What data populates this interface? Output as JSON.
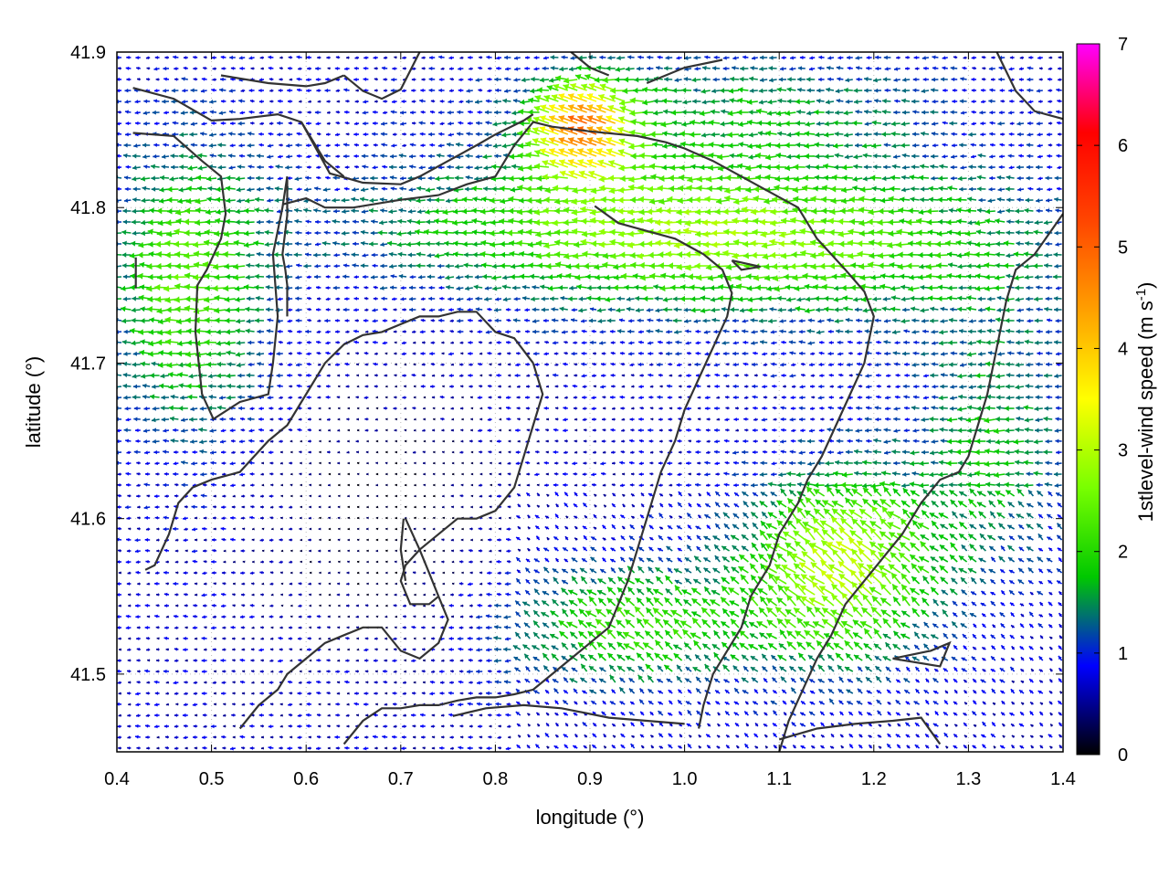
{
  "chart_data": {
    "type": "quiver",
    "xlabel": "longitude (°)",
    "ylabel": "latitude (°)",
    "xlim": [
      0.4,
      1.4
    ],
    "ylim": [
      41.45,
      41.9
    ],
    "xticks": [
      "0.4",
      "0.5",
      "0.6",
      "0.7",
      "0.8",
      "0.9",
      "1.0",
      "1.1",
      "1.2",
      "1.3",
      "1.4"
    ],
    "yticks": [
      "41.5",
      "41.6",
      "41.7",
      "41.8",
      "41.9"
    ],
    "ytick_values": [
      41.5,
      41.6,
      41.7,
      41.8,
      41.9
    ],
    "colorbar": {
      "label_main": "1stlevel-wind speed (m s",
      "label_sup": "-1",
      "label_close": ")",
      "range": [
        0,
        7
      ],
      "ticks": [
        "0",
        "1",
        "2",
        "3",
        "4",
        "5",
        "6",
        "7"
      ],
      "colors": [
        "#000000",
        "#0000ff",
        "#00c800",
        "#78ff00",
        "#ffff00",
        "#ffa000",
        "#ff4600",
        "#ff0000",
        "#ff00ff"
      ]
    },
    "prevailing_wind": "easterly (blowing toward west)",
    "grid": "dotted",
    "contour_lines": [
      [
        [
          0.417,
          41.877
        ],
        [
          0.46,
          41.87
        ],
        [
          0.5,
          41.856
        ],
        [
          0.53,
          41.857
        ],
        [
          0.57,
          41.86
        ],
        [
          0.595,
          41.855
        ],
        [
          0.625,
          41.822
        ],
        [
          0.66,
          41.816
        ],
        [
          0.7,
          41.815
        ],
        [
          0.72,
          41.82
        ],
        [
          0.75,
          41.83
        ],
        [
          0.78,
          41.84
        ],
        [
          0.8,
          41.847
        ],
        [
          0.83,
          41.856
        ],
        [
          0.84,
          41.86
        ]
      ],
      [
        [
          0.417,
          41.848
        ],
        [
          0.46,
          41.846
        ],
        [
          0.49,
          41.83
        ],
        [
          0.51,
          41.82
        ],
        [
          0.515,
          41.796
        ],
        [
          0.51,
          41.78
        ],
        [
          0.495,
          41.76
        ],
        [
          0.485,
          41.75
        ],
        [
          0.483,
          41.72
        ],
        [
          0.49,
          41.68
        ],
        [
          0.502,
          41.664
        ],
        [
          0.53,
          41.675
        ],
        [
          0.56,
          41.68
        ],
        [
          0.565,
          41.7
        ],
        [
          0.57,
          41.73
        ],
        [
          0.565,
          41.77
        ],
        [
          0.575,
          41.8
        ],
        [
          0.58,
          41.82
        ]
      ],
      [
        [
          0.42,
          41.768
        ],
        [
          0.42,
          41.748
        ]
      ],
      [
        [
          0.43,
          41.567
        ],
        [
          0.44,
          41.57
        ],
        [
          0.455,
          41.59
        ],
        [
          0.465,
          41.61
        ],
        [
          0.48,
          41.62
        ],
        [
          0.5,
          41.625
        ],
        [
          0.53,
          41.63
        ],
        [
          0.56,
          41.65
        ],
        [
          0.58,
          41.66
        ],
        [
          0.6,
          41.68
        ],
        [
          0.62,
          41.7
        ],
        [
          0.64,
          41.712
        ],
        [
          0.66,
          41.718
        ],
        [
          0.68,
          41.72
        ],
        [
          0.7,
          41.725
        ],
        [
          0.72,
          41.73
        ],
        [
          0.74,
          41.73
        ],
        [
          0.76,
          41.733
        ],
        [
          0.78,
          41.733
        ],
        [
          0.8,
          41.72
        ],
        [
          0.82,
          41.716
        ],
        [
          0.84,
          41.7
        ]
      ],
      [
        [
          0.58,
          41.82
        ],
        [
          0.58,
          41.795
        ],
        [
          0.575,
          41.77
        ],
        [
          0.578,
          41.76
        ],
        [
          0.58,
          41.75
        ],
        [
          0.58,
          41.73
        ]
      ],
      [
        [
          0.595,
          41.855
        ],
        [
          0.62,
          41.83
        ],
        [
          0.64,
          41.82
        ]
      ],
      [
        [
          0.575,
          41.802
        ],
        [
          0.6,
          41.806
        ],
        [
          0.62,
          41.8
        ],
        [
          0.65,
          41.8
        ],
        [
          0.7,
          41.805
        ],
        [
          0.74,
          41.808
        ],
        [
          0.77,
          41.815
        ],
        [
          0.8,
          41.82
        ],
        [
          0.82,
          41.84
        ],
        [
          0.84,
          41.855
        ],
        [
          0.86,
          41.852
        ],
        [
          0.9,
          41.849
        ],
        [
          0.95,
          41.846
        ],
        [
          0.98,
          41.842
        ],
        [
          1.0,
          41.838
        ],
        [
          1.03,
          41.83
        ],
        [
          1.06,
          41.82
        ],
        [
          1.09,
          41.81
        ],
        [
          1.12,
          41.8
        ],
        [
          1.14,
          41.78
        ],
        [
          1.17,
          41.76
        ],
        [
          1.19,
          41.746
        ],
        [
          1.2,
          41.73
        ],
        [
          1.19,
          41.7
        ],
        [
          1.175,
          41.68
        ],
        [
          1.16,
          41.66
        ],
        [
          1.145,
          41.64
        ],
        [
          1.13,
          41.625
        ],
        [
          1.12,
          41.61
        ],
        [
          1.1,
          41.59
        ],
        [
          1.09,
          41.57
        ],
        [
          1.07,
          41.55
        ],
        [
          1.06,
          41.53
        ],
        [
          1.04,
          41.51
        ],
        [
          1.03,
          41.5
        ],
        [
          1.02,
          41.48
        ],
        [
          1.015,
          41.465
        ]
      ],
      [
        [
          0.905,
          41.801
        ],
        [
          0.93,
          41.79
        ],
        [
          0.96,
          41.785
        ],
        [
          0.99,
          41.78
        ],
        [
          1.02,
          41.77
        ],
        [
          1.04,
          41.76
        ],
        [
          1.05,
          41.745
        ],
        [
          1.045,
          41.73
        ],
        [
          1.03,
          41.71
        ],
        [
          1.015,
          41.69
        ],
        [
          1.0,
          41.67
        ],
        [
          0.99,
          41.65
        ],
        [
          0.975,
          41.63
        ],
        [
          0.96,
          41.6
        ],
        [
          0.95,
          41.58
        ],
        [
          0.94,
          41.56
        ],
        [
          0.93,
          41.545
        ],
        [
          0.92,
          41.53
        ],
        [
          0.9,
          41.52
        ],
        [
          0.88,
          41.51
        ],
        [
          0.86,
          41.5
        ],
        [
          0.84,
          41.49
        ],
        [
          0.82,
          41.487
        ],
        [
          0.8,
          41.485
        ],
        [
          0.78,
          41.485
        ],
        [
          0.76,
          41.483
        ],
        [
          0.74,
          41.48
        ],
        [
          0.72,
          41.48
        ],
        [
          0.7,
          41.478
        ],
        [
          0.68,
          41.478
        ],
        [
          0.66,
          41.47
        ],
        [
          0.64,
          41.455
        ]
      ],
      [
        [
          0.84,
          41.7
        ],
        [
          0.85,
          41.68
        ],
        [
          0.84,
          41.66
        ],
        [
          0.83,
          41.64
        ],
        [
          0.82,
          41.62
        ],
        [
          0.8,
          41.605
        ],
        [
          0.78,
          41.6
        ],
        [
          0.76,
          41.6
        ],
        [
          0.74,
          41.59
        ],
        [
          0.72,
          41.58
        ],
        [
          0.705,
          41.57
        ],
        [
          0.7,
          41.56
        ],
        [
          0.71,
          41.545
        ],
        [
          0.73,
          41.545
        ],
        [
          0.74,
          41.55
        ]
      ],
      [
        [
          0.74,
          41.55
        ],
        [
          0.73,
          41.565
        ],
        [
          0.72,
          41.58
        ],
        [
          0.705,
          41.6
        ]
      ],
      [
        [
          0.703,
          41.6
        ],
        [
          0.7,
          41.58
        ],
        [
          0.705,
          41.56
        ]
      ],
      [
        [
          0.74,
          41.55
        ],
        [
          0.75,
          41.535
        ],
        [
          0.74,
          41.52
        ],
        [
          0.72,
          41.51
        ],
        [
          0.7,
          41.515
        ],
        [
          0.68,
          41.53
        ],
        [
          0.66,
          41.53
        ],
        [
          0.64,
          41.525
        ],
        [
          0.62,
          41.52
        ],
        [
          0.6,
          41.51
        ],
        [
          0.58,
          41.5
        ],
        [
          0.57,
          41.49
        ],
        [
          0.55,
          41.48
        ],
        [
          0.53,
          41.465
        ]
      ],
      [
        [
          0.51,
          41.885
        ],
        [
          0.56,
          41.88
        ],
        [
          0.6,
          41.878
        ],
        [
          0.62,
          41.88
        ],
        [
          0.64,
          41.885
        ]
      ],
      [
        [
          0.64,
          41.885
        ],
        [
          0.66,
          41.875
        ],
        [
          0.68,
          41.87
        ],
        [
          0.7,
          41.876
        ],
        [
          0.72,
          41.9
        ]
      ],
      [
        [
          0.88,
          41.9
        ],
        [
          0.9,
          41.89
        ],
        [
          0.92,
          41.885
        ]
      ],
      [
        [
          0.96,
          41.88
        ],
        [
          1.0,
          41.89
        ],
        [
          1.04,
          41.895
        ]
      ],
      [
        [
          1.05,
          41.766
        ],
        [
          1.08,
          41.762
        ],
        [
          1.06,
          41.76
        ],
        [
          1.05,
          41.766
        ]
      ],
      [
        [
          1.33,
          41.9
        ],
        [
          1.35,
          41.875
        ],
        [
          1.37,
          41.862
        ],
        [
          1.4,
          41.857
        ]
      ],
      [
        [
          1.4,
          41.796
        ],
        [
          1.37,
          41.77
        ],
        [
          1.35,
          41.76
        ],
        [
          1.34,
          41.74
        ],
        [
          1.33,
          41.71
        ],
        [
          1.32,
          41.68
        ],
        [
          1.31,
          41.66
        ],
        [
          1.3,
          41.64
        ],
        [
          1.29,
          41.63
        ],
        [
          1.27,
          41.625
        ],
        [
          1.25,
          41.61
        ],
        [
          1.23,
          41.59
        ],
        [
          1.21,
          41.575
        ],
        [
          1.19,
          41.56
        ],
        [
          1.17,
          41.545
        ],
        [
          1.155,
          41.525
        ],
        [
          1.14,
          41.51
        ],
        [
          1.125,
          41.49
        ],
        [
          1.11,
          41.47
        ],
        [
          1.1,
          41.45
        ]
      ],
      [
        [
          1.22,
          41.51
        ],
        [
          1.26,
          41.515
        ],
        [
          1.28,
          41.52
        ],
        [
          1.27,
          41.505
        ],
        [
          1.22,
          41.51
        ]
      ],
      [
        [
          1.1,
          41.458
        ],
        [
          1.14,
          41.465
        ],
        [
          1.18,
          41.468
        ],
        [
          1.22,
          41.47
        ],
        [
          1.25,
          41.472
        ],
        [
          1.27,
          41.455
        ]
      ],
      [
        [
          0.755,
          41.473
        ],
        [
          0.79,
          41.478
        ],
        [
          0.83,
          41.48
        ],
        [
          0.87,
          41.478
        ],
        [
          0.92,
          41.472
        ],
        [
          0.96,
          41.47
        ],
        [
          1.0,
          41.468
        ]
      ]
    ]
  }
}
